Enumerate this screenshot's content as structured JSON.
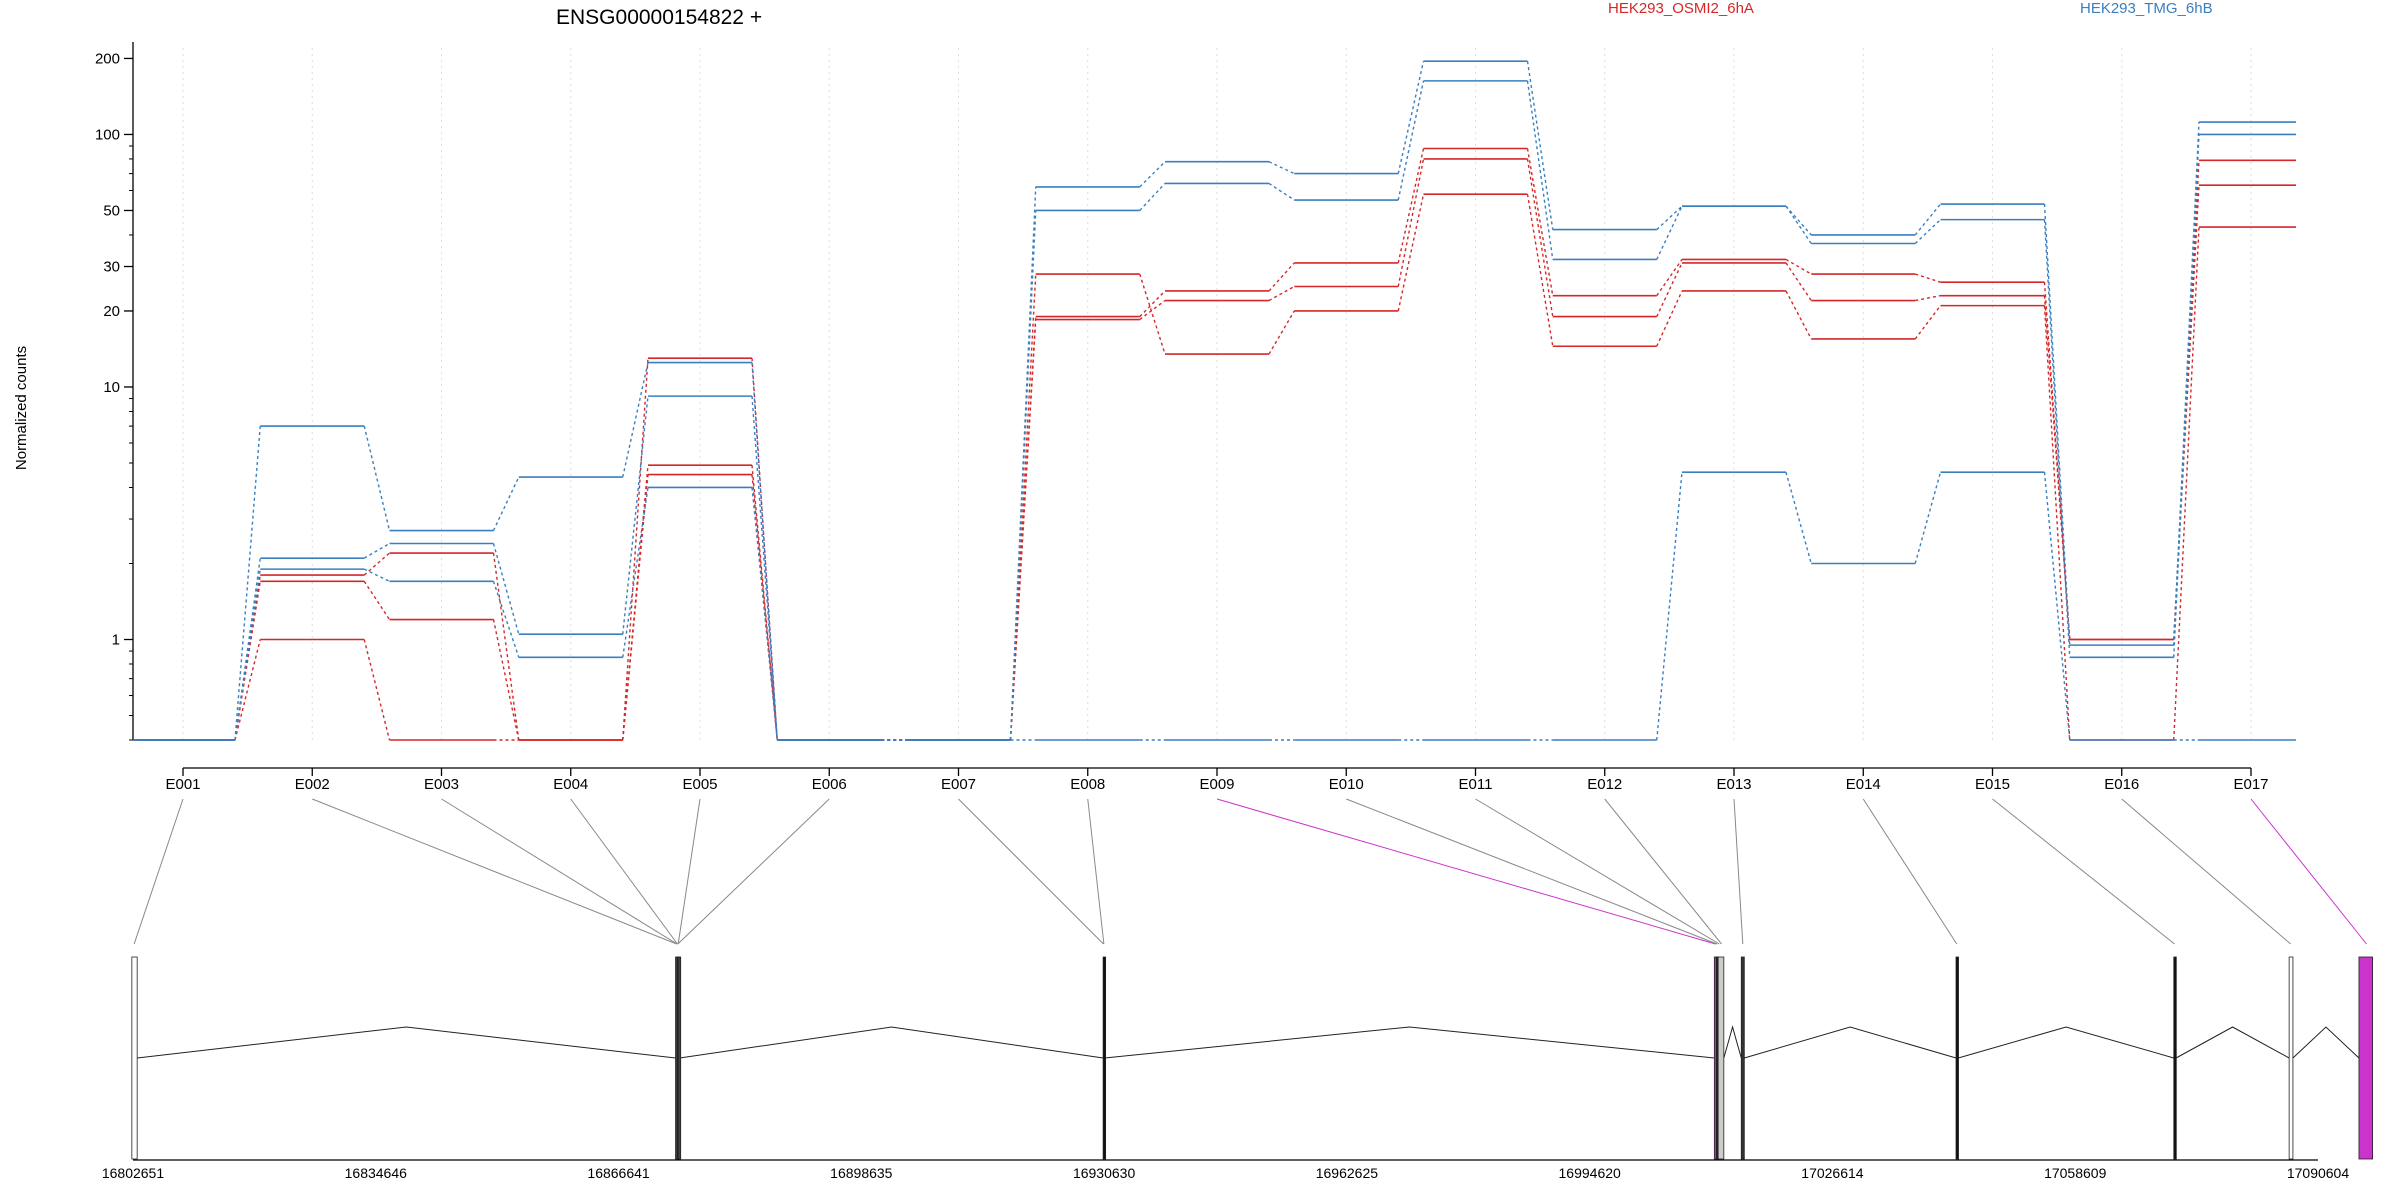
{
  "chart_data": {
    "type": "line",
    "title": "ENSG00000154822 +",
    "ylabel": "Normalized counts",
    "xlabel": "",
    "y_scale": "log",
    "ylim": [
      0.4,
      220
    ],
    "y_ticks": [
      1,
      10,
      20,
      30,
      50,
      100,
      200
    ],
    "grid": "vertical dotted lines at exon centers",
    "legend_placement": "top",
    "colors": {
      "HEK293_OSMI2_6hA": "#d62728",
      "HEK293_TMG_6hB": "#3a7fbf",
      "highlight": "#cc33cc"
    },
    "categories": [
      "E001",
      "E002",
      "E003",
      "E004",
      "E005",
      "E006",
      "E007",
      "E008",
      "E009",
      "E010",
      "E011",
      "E012",
      "E013",
      "E014",
      "E015",
      "E016",
      "E017"
    ],
    "series": [
      {
        "name": "HEK293_OSMI2_6hA",
        "values": [
          0.4,
          1.8,
          2.2,
          0.4,
          4.9,
          0.4,
          0.4,
          19,
          24,
          31,
          88,
          23,
          32,
          28,
          26,
          1.0,
          79
        ]
      },
      {
        "name": "HEK293_OSMI2_6hA",
        "values": [
          0.4,
          1.7,
          1.2,
          0.4,
          4.5,
          0.4,
          0.4,
          18.5,
          22,
          25,
          80,
          19,
          31,
          22,
          23,
          1.0,
          63
        ]
      },
      {
        "name": "HEK293_OSMI2_6hA",
        "values": [
          0.4,
          1.0,
          0.4,
          0.4,
          13,
          0.4,
          0.4,
          28,
          13.5,
          20,
          58,
          14.5,
          24,
          15.5,
          21,
          0.4,
          43
        ]
      },
      {
        "name": "HEK293_TMG_6hB",
        "values": [
          0.4,
          7,
          2.7,
          4.4,
          12.5,
          0.4,
          0.4,
          62,
          78,
          70,
          195,
          42,
          52,
          40,
          53,
          0.95,
          112
        ]
      },
      {
        "name": "HEK293_TMG_6hB",
        "values": [
          0.4,
          2.1,
          2.4,
          1.05,
          9.2,
          0.4,
          0.4,
          50,
          64,
          55,
          163,
          32,
          52,
          37,
          46,
          0.85,
          100
        ]
      },
      {
        "name": "HEK293_TMG_6hB",
        "values": [
          0.4,
          1.9,
          1.7,
          0.85,
          4.0,
          0.4,
          0.4,
          0.4,
          0.4,
          0.4,
          0.4,
          0.4,
          4.6,
          2.0,
          4.6,
          0.4,
          0.4
        ]
      }
    ],
    "gene_model": {
      "coord_ticks": [
        "16802651",
        "16834646",
        "16866641",
        "16898635",
        "16930630",
        "16962625",
        "16994620",
        "17026614",
        "17058609",
        "17090604"
      ],
      "exon_positions": [
        16802800,
        16874300,
        16874350,
        16874400,
        16874500,
        16874450,
        16930550,
        16930600,
        17011200,
        17011400,
        17011700,
        17012000,
        17014800,
        17043000,
        17071700,
        17087000,
        17097000
      ],
      "highlighted_exons": [
        "E009",
        "E017"
      ]
    }
  }
}
